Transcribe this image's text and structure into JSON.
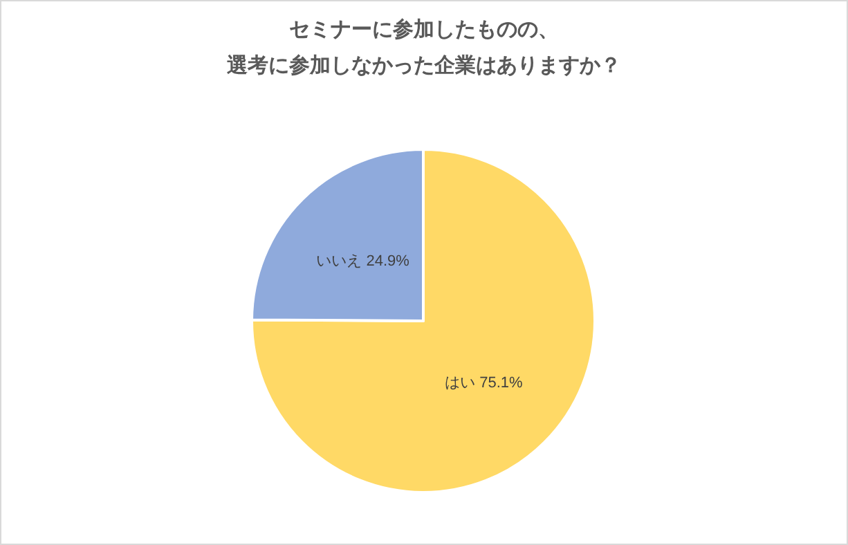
{
  "chart_data": {
    "type": "pie",
    "title": "セミナーに参加したものの、選考に参加しなかった企業はありますか？",
    "categories": [
      "はい",
      "いいえ"
    ],
    "values": [
      75.1,
      24.9
    ],
    "value_labels": [
      "75.1%",
      "24.9%"
    ],
    "colors": [
      "#ffd966",
      "#8faadc"
    ],
    "legend": false
  }
}
